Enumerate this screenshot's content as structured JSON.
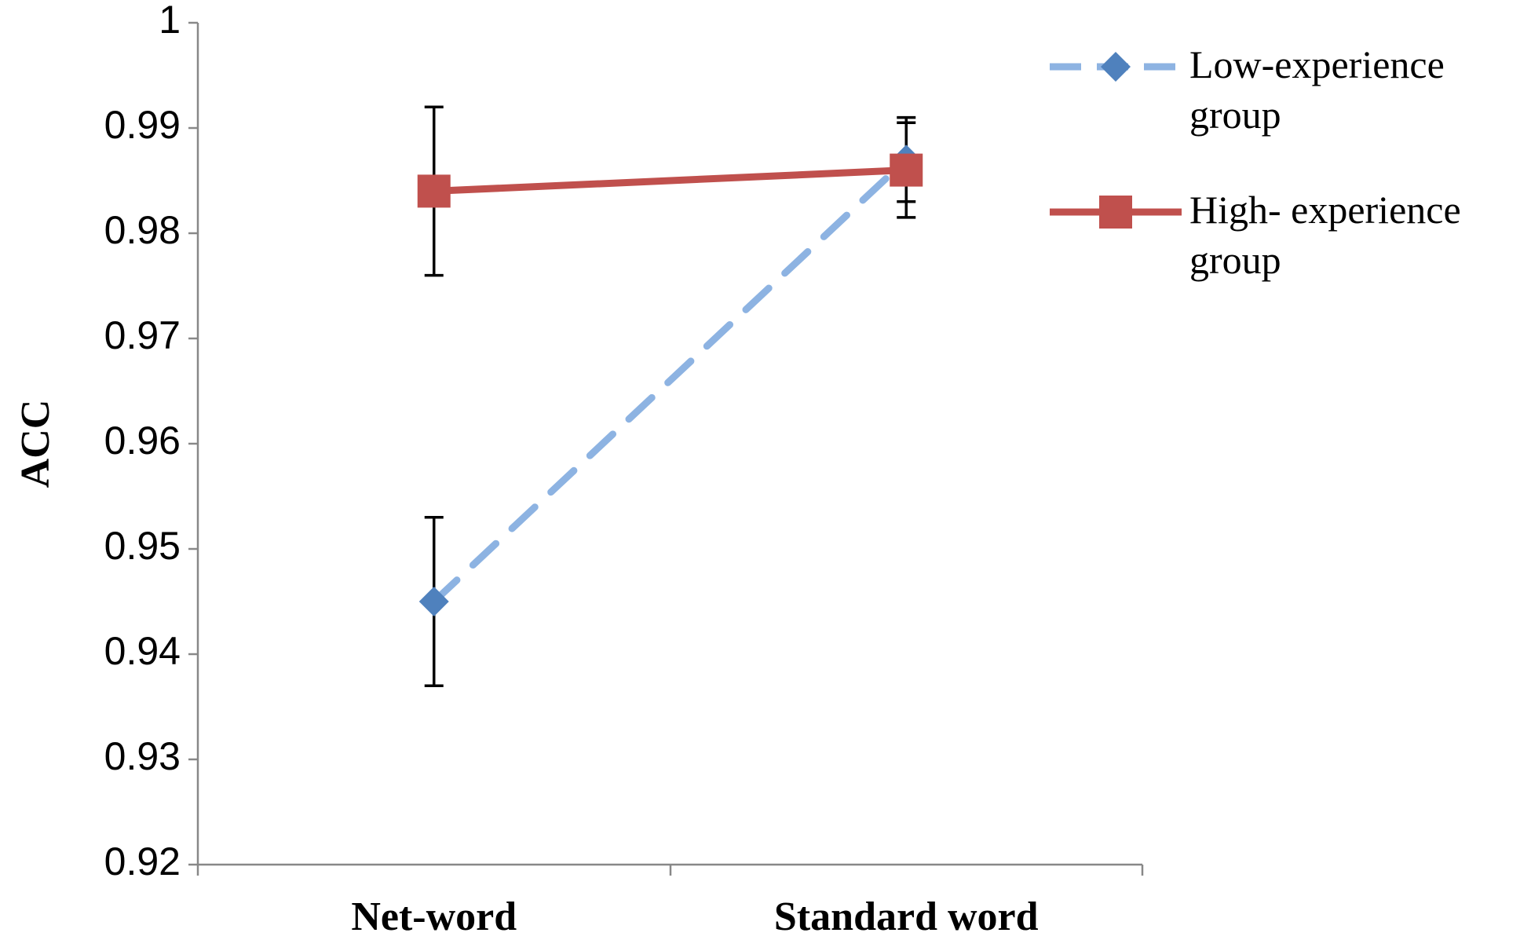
{
  "chart_data": {
    "type": "line",
    "y_label": "ACC",
    "categories": [
      "Net-word",
      "Standard word"
    ],
    "series": [
      {
        "name": "Low-experience group",
        "color": "#8db3e2",
        "marker_color": "#4f81bd",
        "marker": "diamond",
        "dashed": true,
        "values": [
          0.945,
          0.987
        ],
        "errors": [
          0.008,
          0.004
        ]
      },
      {
        "name": "High- experience group",
        "color": "#c0504d",
        "marker_color": "#c0504d",
        "marker": "square",
        "dashed": false,
        "values": [
          0.984,
          0.986
        ],
        "errors": [
          0.008,
          0.0045
        ]
      }
    ],
    "ylim": [
      0.92,
      1
    ],
    "yticks": [
      0.92,
      0.93,
      0.94,
      0.95,
      0.96,
      0.97,
      0.98,
      0.99,
      1
    ],
    "legend": "right"
  }
}
